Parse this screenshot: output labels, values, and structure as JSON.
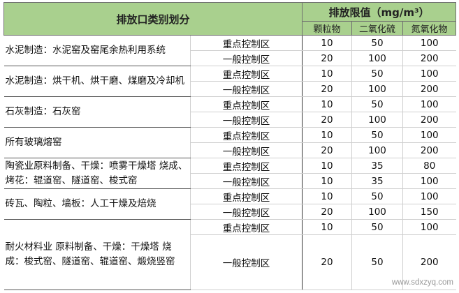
{
  "header": {
    "category_title": "排放口类别划分",
    "limit_title": "排放限值（mg/m³）",
    "pollutants": [
      "颗粒物",
      "二氧化硫",
      "氮氧化物"
    ]
  },
  "groups": [
    {
      "category": "水泥制造：水泥窑及窑尾余热利用系统",
      "rows": [
        {
          "zone": "重点控制区",
          "values": [
            "10",
            "50",
            "100"
          ]
        },
        {
          "zone": "一般控制区",
          "values": [
            "20",
            "100",
            "200"
          ]
        }
      ]
    },
    {
      "category": "水泥制造：烘干机、烘干磨、煤磨及冷却机",
      "rows": [
        {
          "zone": "重点控制区",
          "values": [
            "10",
            "50",
            "100"
          ]
        },
        {
          "zone": "一般控制区",
          "values": [
            "20",
            "100",
            "200"
          ]
        }
      ]
    },
    {
      "category": "石灰制造：石灰窑",
      "rows": [
        {
          "zone": "重点控制区",
          "values": [
            "10",
            "50",
            "100"
          ]
        },
        {
          "zone": "一般控制区",
          "values": [
            "20",
            "100",
            "200"
          ]
        }
      ]
    },
    {
      "category": "所有玻璃熔窑",
      "rows": [
        {
          "zone": "重点控制区",
          "values": [
            "10",
            "50",
            "100"
          ]
        },
        {
          "zone": "一般控制区",
          "values": [
            "20",
            "100",
            "200"
          ]
        }
      ]
    },
    {
      "category": "陶瓷业原料制备、干燥：喷雾干燥塔 烧成、烤花：辊道窑、隧道窑、梭式窑",
      "rows": [
        {
          "zone": "重点控制区",
          "values": [
            "10",
            "35",
            "80"
          ]
        },
        {
          "zone": "一般控制区",
          "values": [
            "10",
            "35",
            "100"
          ]
        }
      ]
    },
    {
      "category": "砖瓦、陶粒、墙板：人工干燥及焙烧",
      "rows": [
        {
          "zone": "重点控制区",
          "values": [
            "10",
            "50",
            "100"
          ]
        },
        {
          "zone": "一般控制区",
          "values": [
            "20",
            "100",
            "150"
          ]
        }
      ]
    },
    {
      "category": "耐火材料业 原料制备、干燥：干燥塔 烧成：梭式窑、隧道窑、辊道窑、煅烧竖窑",
      "rows": [
        {
          "zone": "重点控制区",
          "values": [
            "10",
            "50",
            "100"
          ]
        },
        {
          "zone": "一般控制区",
          "values": [
            "20",
            "50",
            "200"
          ]
        }
      ]
    }
  ],
  "watermark": "www.sdxzyq.com"
}
